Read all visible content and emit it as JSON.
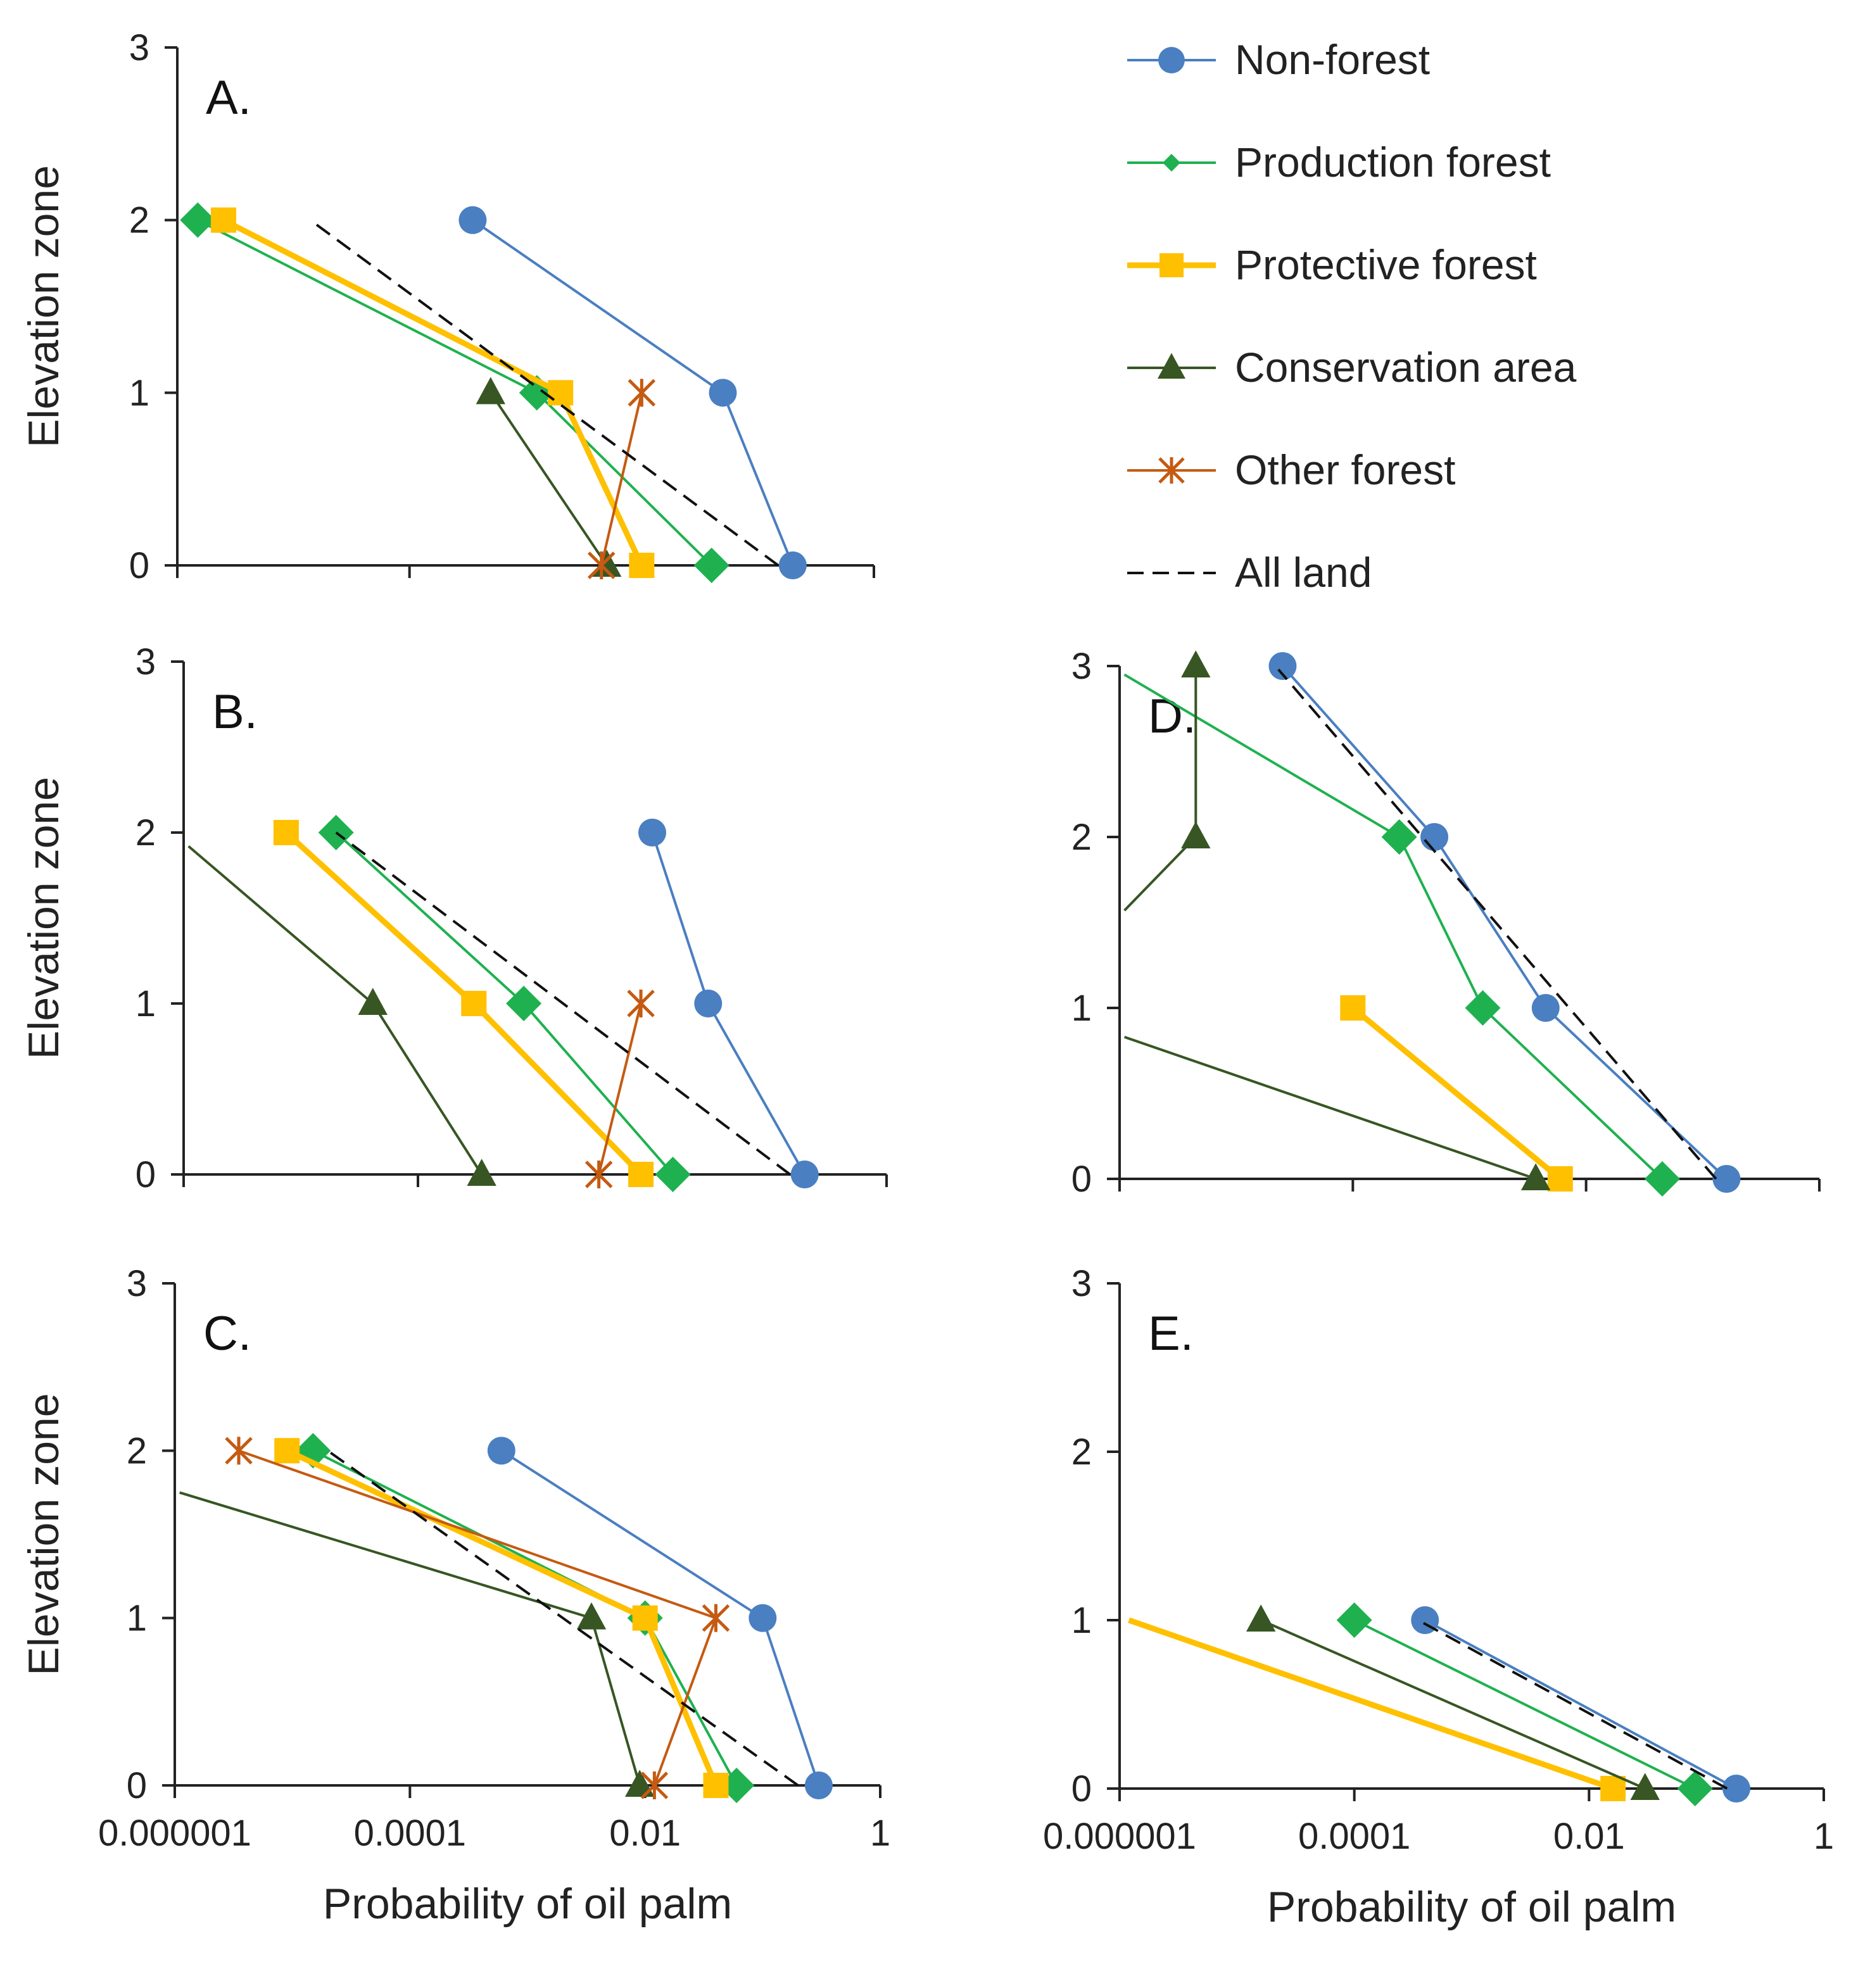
{
  "chart_data": {
    "type": "line",
    "x_scale": "log10",
    "x_ticks": [
      "0.000001",
      "0.0001",
      "0.01",
      "1"
    ],
    "y_ticks": [
      "0",
      "1",
      "2",
      "3"
    ],
    "xlim": [
      1e-06,
      1
    ],
    "ylim": [
      0,
      3
    ],
    "xlabel": "Probability of oil palm",
    "ylabel": "Elevation zone",
    "legend": {
      "position": "top-right",
      "entries": [
        {
          "key": "nonforest",
          "label": "Non-forest",
          "color": "#4a7fc1",
          "marker": "circle",
          "dash": "solid"
        },
        {
          "key": "production",
          "label": "Production forest",
          "color": "#1fb14f",
          "marker": "diamond",
          "dash": "solid"
        },
        {
          "key": "protective",
          "label": "Protective forest",
          "color": "#ffc000",
          "marker": "square",
          "dash": "solid"
        },
        {
          "key": "conservation",
          "label": "Conservation area",
          "color": "#375623",
          "marker": "triangle",
          "dash": "solid"
        },
        {
          "key": "other",
          "label": "Other forest",
          "color": "#c55a11",
          "marker": "star",
          "dash": "solid"
        },
        {
          "key": "all",
          "label": "All land",
          "color": "#111111",
          "marker": "none",
          "dash": "dashed"
        }
      ]
    },
    "panels": [
      {
        "id": "A",
        "label": "A.",
        "show_xticks": false,
        "show_xlabel": false,
        "series": [
          {
            "key": "nonforest",
            "points": [
              [
                0.2,
                0
              ],
              [
                0.05,
                1
              ],
              [
                0.00035,
                2
              ]
            ]
          },
          {
            "key": "production",
            "points": [
              [
                0.04,
                0
              ],
              [
                0.00125,
                1
              ],
              [
                1.5e-06,
                2
              ]
            ]
          },
          {
            "key": "protective",
            "points": [
              [
                0.01,
                0
              ],
              [
                0.002,
                1
              ],
              [
                2.5e-06,
                2
              ]
            ]
          },
          {
            "key": "conservation",
            "points": [
              [
                0.005,
                0
              ],
              [
                0.0005,
                1
              ]
            ]
          },
          {
            "key": "other",
            "points": [
              [
                0.0045,
                0
              ],
              [
                0.01,
                1
              ]
            ]
          },
          {
            "key": "all",
            "points": [
              [
                0.15,
                0
              ],
              [
                1.4e-05,
                2
              ]
            ]
          }
        ]
      },
      {
        "id": "B",
        "label": "B.",
        "show_xticks": false,
        "show_xlabel": false,
        "series": [
          {
            "key": "nonforest",
            "points": [
              [
                0.2,
                0
              ],
              [
                0.03,
                1
              ],
              [
                0.01,
                2
              ]
            ]
          },
          {
            "key": "production",
            "points": [
              [
                0.015,
                0
              ],
              [
                0.0008,
                1
              ],
              [
                2e-05,
                2
              ]
            ]
          },
          {
            "key": "protective",
            "points": [
              [
                0.008,
                0
              ],
              [
                0.0003,
                1
              ],
              [
                7.5e-06,
                2
              ]
            ]
          },
          {
            "key": "conservation",
            "points": [
              [
                0.00035,
                0
              ],
              [
                4.12e-05,
                1
              ],
              [
                1.1e-06,
                1.92
              ]
            ]
          },
          {
            "key": "other",
            "points": [
              [
                0.0035,
                0
              ],
              [
                0.008,
                1
              ]
            ]
          },
          {
            "key": "all",
            "points": [
              [
                0.15,
                0
              ],
              [
                2e-05,
                2
              ]
            ]
          }
        ]
      },
      {
        "id": "C",
        "label": "C.",
        "show_xticks": true,
        "show_xlabel": true,
        "series": [
          {
            "key": "nonforest",
            "points": [
              [
                0.3,
                0
              ],
              [
                0.1,
                1
              ],
              [
                0.0006,
                2
              ]
            ]
          },
          {
            "key": "production",
            "points": [
              [
                0.06,
                0
              ],
              [
                0.01,
                1
              ],
              [
                1.5e-05,
                2
              ]
            ]
          },
          {
            "key": "protective",
            "points": [
              [
                0.04,
                0
              ],
              [
                0.01,
                1
              ],
              [
                9e-06,
                2
              ]
            ]
          },
          {
            "key": "conservation",
            "points": [
              [
                0.009,
                0
              ],
              [
                0.0035,
                1
              ],
              [
                1.1e-06,
                1.75
              ]
            ]
          },
          {
            "key": "other",
            "points": [
              [
                0.012,
                0
              ],
              [
                0.04,
                1
              ],
              [
                3.5e-06,
                2
              ]
            ]
          },
          {
            "key": "all",
            "points": [
              [
                0.2,
                0
              ],
              [
                2e-05,
                2
              ]
            ]
          }
        ]
      },
      {
        "id": "D",
        "label": "D.",
        "show_xticks": false,
        "show_xlabel": false,
        "series": [
          {
            "key": "nonforest",
            "points": [
              [
                0.16,
                0
              ],
              [
                0.0045,
                1
              ],
              [
                0.0005,
                2
              ],
              [
                2.5e-05,
                3
              ]
            ]
          },
          {
            "key": "production",
            "points": [
              [
                0.045,
                0
              ],
              [
                0.0013,
                1
              ],
              [
                0.00025,
                2
              ],
              [
                1.1e-06,
                2.95
              ]
            ]
          },
          {
            "key": "protective",
            "points": [
              [
                0.006,
                0
              ],
              [
                0.0001,
                1
              ]
            ]
          },
          {
            "key": "conservation",
            "points": [
              [
                0.0037,
                0
              ],
              [
                1.1e-06,
                0.83
              ]
            ]
          },
          {
            "key": "conservation_upper",
            "style": "conservation",
            "points": [
              [
                4.5e-06,
                3
              ],
              [
                4.5e-06,
                2
              ],
              [
                1.1e-06,
                1.57
              ]
            ]
          },
          {
            "key": "all",
            "points": [
              [
                0.13,
                0
              ],
              [
                2.3e-05,
                2.98
              ]
            ]
          }
        ]
      },
      {
        "id": "E",
        "label": "E.",
        "show_xticks": true,
        "show_xlabel": true,
        "series": [
          {
            "key": "nonforest",
            "points": [
              [
                0.18,
                0
              ],
              [
                0.0004,
                1
              ]
            ]
          },
          {
            "key": "production",
            "points": [
              [
                0.08,
                0
              ],
              [
                0.0001,
                1
              ]
            ]
          },
          {
            "key": "protective",
            "points": [
              [
                0.016,
                0
              ],
              [
                1.2e-06,
                1
              ]
            ]
          },
          {
            "key": "conservation",
            "points": [
              [
                0.03,
                0
              ],
              [
                1.6e-05,
                1
              ]
            ]
          },
          {
            "key": "all",
            "points": [
              [
                0.15,
                0
              ],
              [
                0.00035,
                1
              ]
            ]
          }
        ]
      }
    ]
  }
}
